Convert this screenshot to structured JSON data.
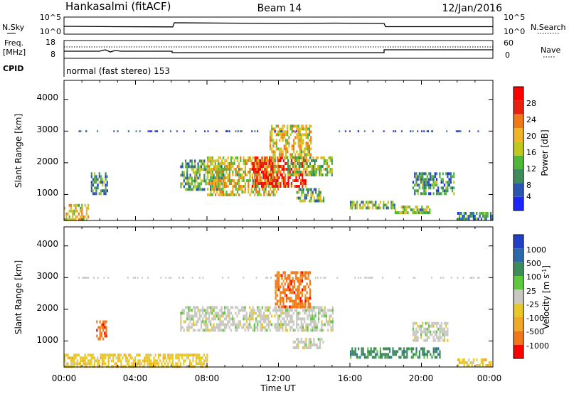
{
  "header": {
    "station": "Hankasalmi (fitACF)",
    "beam": "Beam 14",
    "date": "12/Jan/2016"
  },
  "noise_panel": {
    "left_label": "N.Sky",
    "left_ticks": [
      "10^5",
      "10^0"
    ],
    "right_ticks": [
      "10^5",
      "10^0"
    ],
    "right_label": "N.Search"
  },
  "freq_panel": {
    "left_label_top": "Freq.",
    "left_label_unit": "[MHz]",
    "left_ticks": [
      "18",
      "8"
    ],
    "right_ticks": [
      "60",
      "0"
    ],
    "right_label": "Nave"
  },
  "cpid_panel": {
    "label": "CPID",
    "text": "normal (fast stereo) 153"
  },
  "colors": {
    "power": [
      "#1a28ff",
      "#2a55b0",
      "#3c8c5c",
      "#50b838",
      "#c0c81e",
      "#f0b428",
      "#f07818",
      "#e82010",
      "#ff0000"
    ],
    "velocity": [
      "#2040c8",
      "#2a6aa8",
      "#3c8c5c",
      "#5ec83c",
      "#c8c8c0",
      "#e8c828",
      "#f0a828",
      "#f07818",
      "#ff0000"
    ]
  },
  "chart_data": [
    {
      "type": "heatmap",
      "title": "",
      "xlabel": "Time UT",
      "ylabel": "Slant Range [km]",
      "x_ticks": [
        "00:00",
        "04:00",
        "08:00",
        "12:00",
        "16:00",
        "20:00",
        "00:00"
      ],
      "y_ticks": [
        "1000",
        "2000",
        "3000",
        "4000"
      ],
      "ylim": [
        180,
        4600
      ],
      "colorbar": {
        "label": "Power [dB]",
        "ticks": [
          "4",
          "8",
          "12",
          "16",
          "20",
          "24",
          "28"
        ],
        "range": [
          0,
          30
        ]
      },
      "regions": [
        {
          "t": [
            0.0,
            1.4
          ],
          "r": [
            200,
            700
          ],
          "level": 0.55
        },
        {
          "t": [
            1.5,
            2.4
          ],
          "r": [
            1000,
            1700
          ],
          "level": 0.3
        },
        {
          "t": [
            6.5,
            9.0
          ],
          "r": [
            1200,
            2100
          ],
          "level": 0.35
        },
        {
          "t": [
            8.0,
            12.0
          ],
          "r": [
            1000,
            2200
          ],
          "level": 0.55
        },
        {
          "t": [
            10.5,
            13.5
          ],
          "r": [
            1300,
            2200
          ],
          "level": 0.8
        },
        {
          "t": [
            11.5,
            13.8
          ],
          "r": [
            2200,
            3200
          ],
          "level": 0.55
        },
        {
          "t": [
            12.5,
            15.0
          ],
          "r": [
            1600,
            2200
          ],
          "level": 0.45
        },
        {
          "t": [
            13.0,
            14.5
          ],
          "r": [
            800,
            1200
          ],
          "level": 0.35
        },
        {
          "t": [
            16.0,
            18.5
          ],
          "r": [
            550,
            800
          ],
          "level": 0.4
        },
        {
          "t": [
            18.5,
            20.5
          ],
          "r": [
            400,
            650
          ],
          "level": 0.4
        },
        {
          "t": [
            19.5,
            21.8
          ],
          "r": [
            1000,
            1700
          ],
          "level": 0.3
        },
        {
          "t": [
            22.0,
            24.0
          ],
          "r": [
            200,
            450
          ],
          "level": 0.25
        }
      ]
    },
    {
      "type": "heatmap",
      "title": "",
      "xlabel": "Time UT",
      "ylabel": "Slant Range [km]",
      "x_ticks": [
        "00:00",
        "04:00",
        "08:00",
        "12:00",
        "16:00",
        "20:00",
        "00:00"
      ],
      "y_ticks": [
        "1000",
        "2000",
        "3000",
        "4000"
      ],
      "ylim": [
        180,
        4600
      ],
      "colorbar": {
        "label": "Velocity [m s^-1]",
        "ticks": [
          "1000",
          "500",
          "100",
          "25",
          "-25",
          "-100",
          "-500",
          "-1000"
        ],
        "range": [
          -1000,
          1000
        ]
      },
      "regions": [
        {
          "t": [
            0.0,
            8.0
          ],
          "r": [
            200,
            600
          ],
          "class": "-100"
        },
        {
          "t": [
            1.8,
            2.4
          ],
          "r": [
            1100,
            1650
          ],
          "class": "-500"
        },
        {
          "t": [
            6.5,
            15.0
          ],
          "r": [
            1300,
            2100
          ],
          "class": "25"
        },
        {
          "t": [
            11.8,
            13.8
          ],
          "r": [
            2100,
            3200
          ],
          "class": "-500"
        },
        {
          "t": [
            12.8,
            14.5
          ],
          "r": [
            800,
            1100
          ],
          "class": "25"
        },
        {
          "t": [
            16.0,
            21.0
          ],
          "r": [
            450,
            800
          ],
          "class": "100"
        },
        {
          "t": [
            19.5,
            21.5
          ],
          "r": [
            1000,
            1600
          ],
          "class": "25"
        },
        {
          "t": [
            22.0,
            24.0
          ],
          "r": [
            200,
            450
          ],
          "class": "-100"
        }
      ]
    }
  ]
}
